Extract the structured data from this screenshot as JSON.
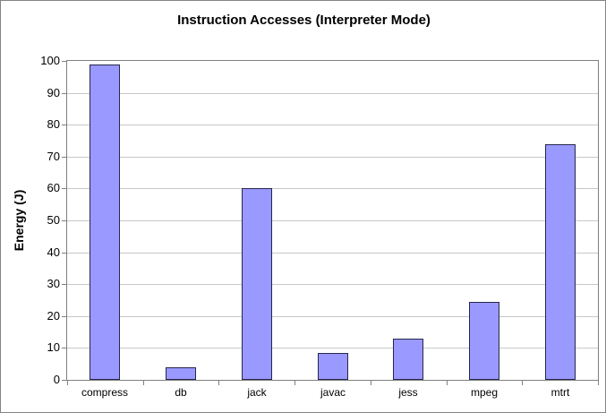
{
  "window": {
    "background": "#ffffff",
    "border_color": "#848484"
  },
  "chart_data": {
    "type": "bar",
    "title": "Instruction Accesses (Interpreter Mode)",
    "ylabel": "Energy (J)",
    "xlabel": "",
    "categories": [
      "compress",
      "db",
      "jack",
      "javac",
      "jess",
      "mpeg",
      "mtrt"
    ],
    "values": [
      99,
      4,
      60,
      8.5,
      13,
      24.5,
      74
    ],
    "ylim": [
      0,
      100
    ],
    "yticks": [
      0,
      10,
      20,
      30,
      40,
      50,
      60,
      70,
      80,
      90,
      100
    ],
    "grid": true,
    "legend_position": "none",
    "colors": {
      "bar_fill": "#9999ff",
      "bar_border": "#26264d",
      "gridline": "#c8c8c8",
      "axis": "#808080",
      "text": "#000000"
    }
  }
}
